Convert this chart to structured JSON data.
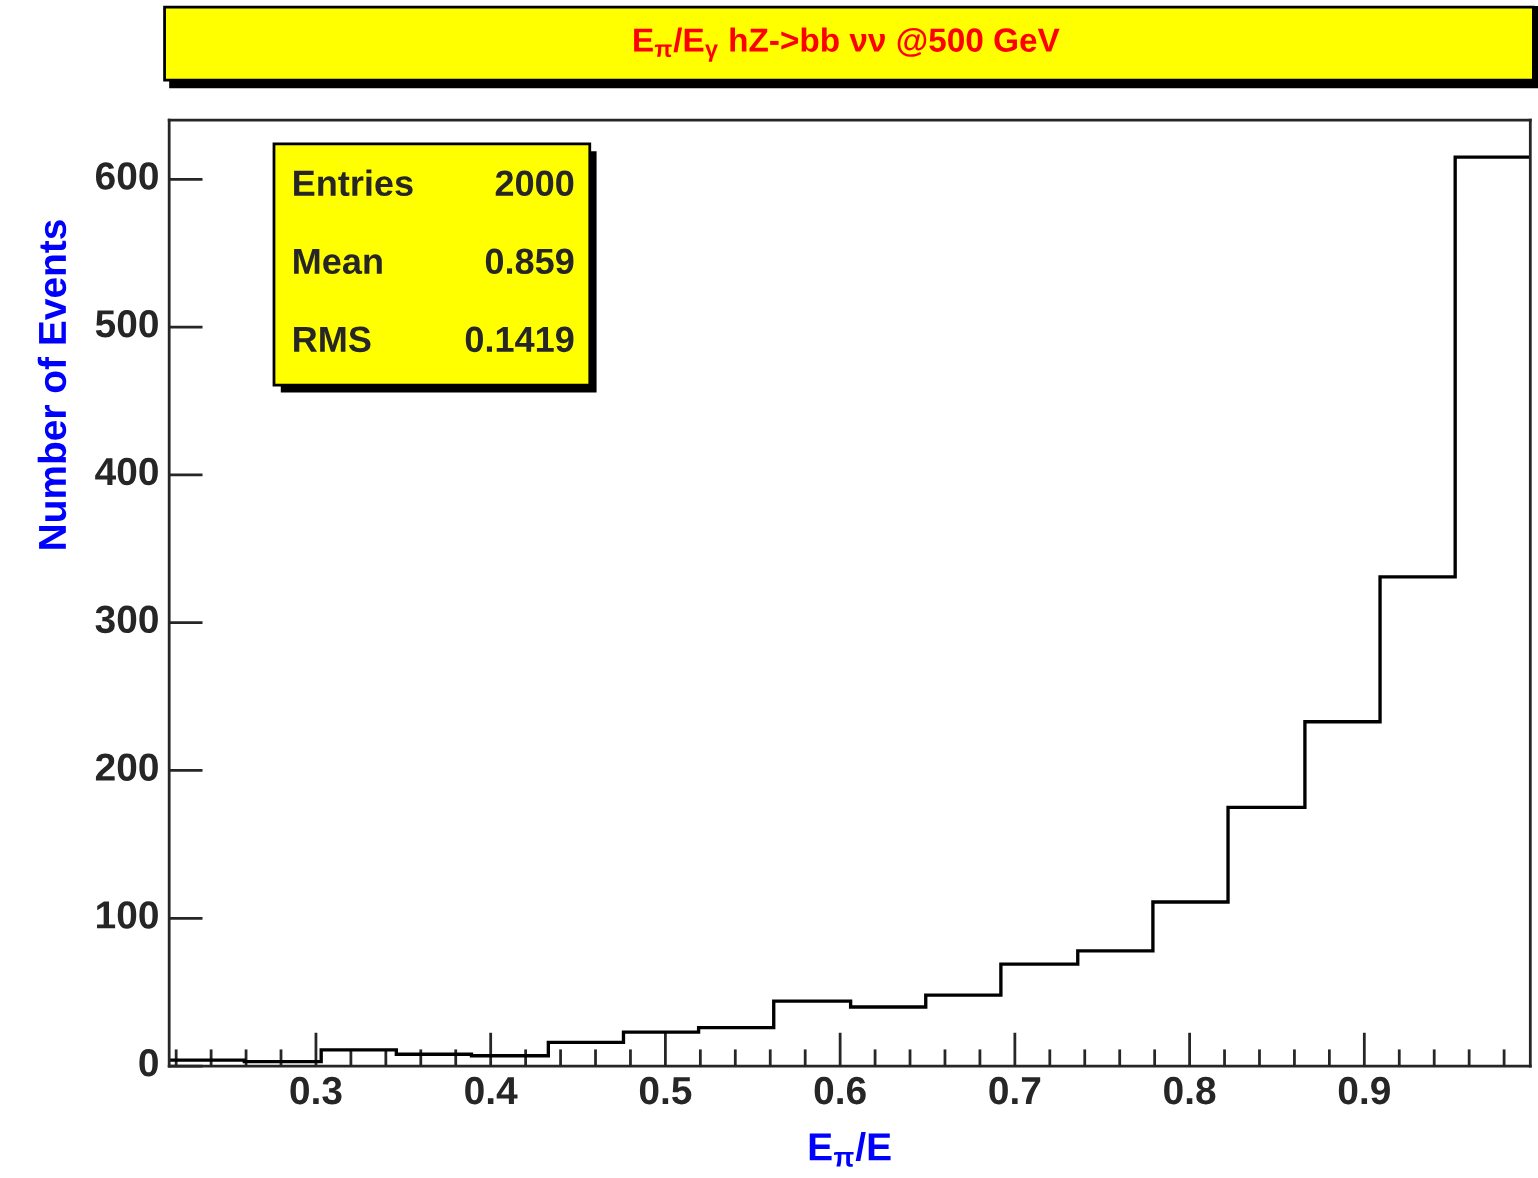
{
  "chart_data": {
    "type": "histogram",
    "title": "E$_{π}$/E$_{γ}$ hZ->bb νν @500 GeV",
    "xlabel": "E$_{π}$/E",
    "ylabel": "Number of Events",
    "bins": [
      0.216,
      0.259,
      0.303,
      0.346,
      0.389,
      0.433,
      0.476,
      0.519,
      0.562,
      0.606,
      0.649,
      0.692,
      0.736,
      0.779,
      0.822,
      0.866,
      0.909,
      0.952,
      0.995
    ],
    "values": [
      4,
      3,
      11,
      8,
      7,
      16,
      23,
      26,
      44,
      40,
      48,
      69,
      78,
      111,
      175,
      233,
      331,
      615
    ],
    "color": "#000000",
    "xlim": [
      0.216,
      0.995
    ],
    "ylim": [
      0,
      640
    ],
    "xticks": [
      {
        "value": 0.22,
        "label": null
      },
      {
        "value": 0.24,
        "label": null
      },
      {
        "value": 0.26,
        "label": null
      },
      {
        "value": 0.28,
        "label": null
      },
      0.3,
      {
        "value": 0.32,
        "label": null
      },
      {
        "value": 0.34,
        "label": null
      },
      {
        "value": 0.36,
        "label": null
      },
      {
        "value": 0.38,
        "label": null
      },
      0.4,
      {
        "value": 0.42,
        "label": null
      },
      {
        "value": 0.44,
        "label": null
      },
      {
        "value": 0.46,
        "label": null
      },
      {
        "value": 0.48,
        "label": null
      },
      0.5,
      {
        "value": 0.52,
        "label": null
      },
      {
        "value": 0.54,
        "label": null
      },
      {
        "value": 0.56,
        "label": null
      },
      {
        "value": 0.58,
        "label": null
      },
      0.6,
      {
        "value": 0.62,
        "label": null
      },
      {
        "value": 0.64,
        "label": null
      },
      {
        "value": 0.66,
        "label": null
      },
      {
        "value": 0.68,
        "label": null
      },
      0.7,
      {
        "value": 0.72,
        "label": null
      },
      {
        "value": 0.74,
        "label": null
      },
      {
        "value": 0.76,
        "label": null
      },
      {
        "value": 0.78,
        "label": null
      },
      0.8,
      {
        "value": 0.82,
        "label": null
      },
      {
        "value": 0.84,
        "label": null
      },
      {
        "value": 0.86,
        "label": null
      },
      {
        "value": 0.88,
        "label": null
      },
      0.9,
      {
        "value": 0.92,
        "label": null
      },
      {
        "value": 0.94,
        "label": null
      },
      {
        "value": 0.96,
        "label": null
      },
      {
        "value": 0.98,
        "label": null
      }
    ],
    "yticks": [
      0,
      100,
      200,
      300,
      400,
      500,
      600
    ],
    "annotations": [
      "Entries",
      "2000",
      "Mean",
      "0.859",
      "RMS",
      "0.1419"
    ],
    "grid": false,
    "legend": false
  }
}
